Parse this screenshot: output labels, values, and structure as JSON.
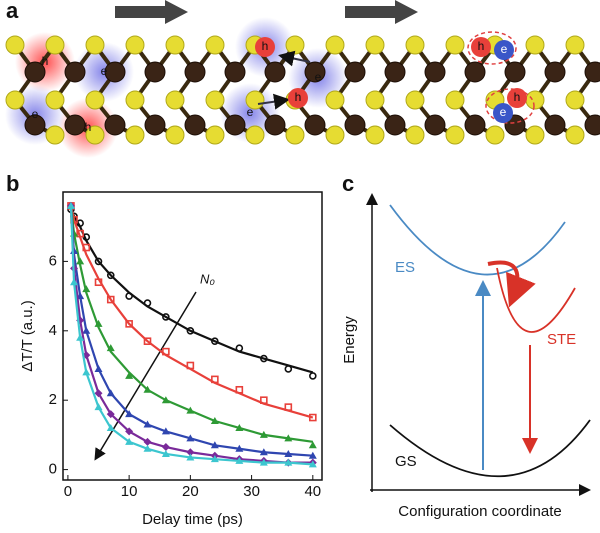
{
  "panel_labels": [
    "a",
    "b",
    "c"
  ],
  "lattice": {
    "carriers": [
      "h",
      "e",
      "h",
      "e",
      "h",
      "e",
      "h",
      "e",
      "h",
      "e",
      "e",
      "h"
    ]
  },
  "chart_data": {
    "type": "scatter",
    "xlabel": "Delay time (ps)",
    "ylabel": "ΔT/T (a.u.)",
    "annotation": "N₀",
    "xlim": [
      -0.8,
      41.5
    ],
    "ylim": [
      -0.3,
      8
    ],
    "xticks": [
      0,
      10,
      20,
      30,
      40
    ],
    "yticks": [
      0,
      2,
      4,
      6
    ],
    "x": [
      0.5,
      1,
      2,
      3,
      5,
      7,
      10,
      13,
      16,
      20,
      24,
      28,
      32,
      36,
      40
    ],
    "series": [
      {
        "color": "#111111",
        "marker": "circle-open",
        "values": [
          7.5,
          7.3,
          7.1,
          6.7,
          6.0,
          5.6,
          5.0,
          4.8,
          4.4,
          4.0,
          3.7,
          3.5,
          3.2,
          2.9,
          2.7
        ],
        "fit": [
          7.5,
          7.3,
          7.0,
          6.6,
          6.0,
          5.6,
          5.1,
          4.7,
          4.4,
          4.0,
          3.7,
          3.4,
          3.2,
          3.0,
          2.8
        ]
      },
      {
        "color": "#e8403a",
        "marker": "square-open",
        "values": [
          7.6,
          7.2,
          6.8,
          6.4,
          5.4,
          4.9,
          4.2,
          3.7,
          3.4,
          3.0,
          2.6,
          2.3,
          2.0,
          1.8,
          1.5
        ],
        "fit": [
          7.6,
          7.2,
          6.7,
          6.2,
          5.5,
          4.9,
          4.2,
          3.7,
          3.3,
          2.9,
          2.5,
          2.2,
          1.9,
          1.7,
          1.5
        ]
      },
      {
        "color": "#2e9a35",
        "marker": "triangle",
        "values": [
          7.6,
          6.8,
          6.0,
          5.2,
          4.2,
          3.5,
          2.7,
          2.3,
          2.0,
          1.7,
          1.4,
          1.2,
          1.0,
          0.9,
          0.7
        ],
        "fit": [
          7.6,
          6.8,
          5.9,
          5.1,
          4.1,
          3.4,
          2.8,
          2.3,
          2.0,
          1.7,
          1.4,
          1.2,
          1.0,
          0.9,
          0.8
        ]
      },
      {
        "color": "#2f46b0",
        "marker": "triangle",
        "values": [
          7.6,
          6.3,
          5.0,
          4.0,
          2.9,
          2.2,
          1.6,
          1.3,
          1.1,
          0.9,
          0.7,
          0.6,
          0.5,
          0.45,
          0.4
        ],
        "fit": [
          7.6,
          6.2,
          5.0,
          4.0,
          2.9,
          2.2,
          1.6,
          1.3,
          1.1,
          0.9,
          0.7,
          0.6,
          0.5,
          0.45,
          0.4
        ]
      },
      {
        "color": "#7a2a9a",
        "marker": "diamond",
        "values": [
          7.6,
          5.8,
          4.3,
          3.3,
          2.2,
          1.6,
          1.1,
          0.8,
          0.65,
          0.5,
          0.4,
          0.3,
          0.25,
          0.2,
          0.2
        ],
        "fit": [
          7.6,
          5.8,
          4.3,
          3.3,
          2.2,
          1.6,
          1.1,
          0.8,
          0.65,
          0.5,
          0.4,
          0.3,
          0.25,
          0.2,
          0.2
        ]
      },
      {
        "color": "#3cc6cf",
        "marker": "triangle",
        "values": [
          7.6,
          5.4,
          3.8,
          2.8,
          1.8,
          1.2,
          0.8,
          0.6,
          0.45,
          0.35,
          0.3,
          0.25,
          0.2,
          0.2,
          0.15
        ],
        "fit": [
          7.6,
          5.4,
          3.8,
          2.8,
          1.8,
          1.2,
          0.8,
          0.6,
          0.45,
          0.35,
          0.3,
          0.25,
          0.2,
          0.2,
          0.15
        ]
      }
    ]
  },
  "diagram": {
    "y_axis": "Energy",
    "x_axis": "Configuration coordinate",
    "excited": "ES",
    "trapped": "STE",
    "ground": "GS"
  }
}
